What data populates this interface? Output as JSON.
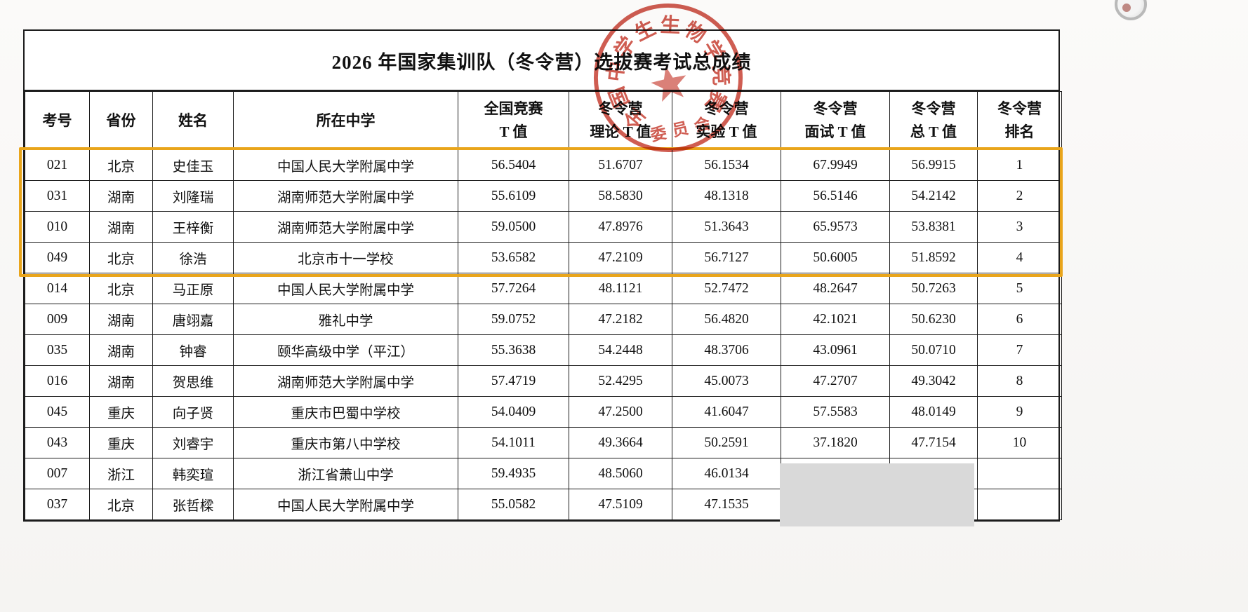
{
  "title": "2026 年国家集训队（冬令营）选拔赛考试总成绩",
  "table": {
    "columns": [
      {
        "key": "exam-number",
        "label": "考号"
      },
      {
        "key": "province",
        "label": "省份"
      },
      {
        "key": "student-name",
        "label": "姓名"
      },
      {
        "key": "school",
        "label": "所在中学"
      },
      {
        "key": "national-contest-t",
        "label": "全国竞赛\nT 值"
      },
      {
        "key": "camp-theory-t",
        "label": "冬令营\n理论 T 值"
      },
      {
        "key": "camp-experiment-t",
        "label": "冬令营\n实验 T 值"
      },
      {
        "key": "camp-interview-t",
        "label": "冬令营\n面试 T 值"
      },
      {
        "key": "camp-total-t",
        "label": "冬令营\n总 T 值"
      },
      {
        "key": "camp-rank",
        "label": "冬令营\n排名"
      }
    ],
    "rows": [
      [
        "021",
        "北京",
        "史佳玉",
        "中国人民大学附属中学",
        "56.5404",
        "51.6707",
        "56.1534",
        "67.9949",
        "56.9915",
        "1"
      ],
      [
        "031",
        "湖南",
        "刘隆瑞",
        "湖南师范大学附属中学",
        "55.6109",
        "58.5830",
        "48.1318",
        "56.5146",
        "54.2142",
        "2"
      ],
      [
        "010",
        "湖南",
        "王梓衡",
        "湖南师范大学附属中学",
        "59.0500",
        "47.8976",
        "51.3643",
        "65.9573",
        "53.8381",
        "3"
      ],
      [
        "049",
        "北京",
        "徐浩",
        "北京市十一学校",
        "53.6582",
        "47.2109",
        "56.7127",
        "50.6005",
        "51.8592",
        "4"
      ],
      [
        "014",
        "北京",
        "马正原",
        "中国人民大学附属中学",
        "57.7264",
        "48.1121",
        "52.7472",
        "48.2647",
        "50.7263",
        "5"
      ],
      [
        "009",
        "湖南",
        "唐翊嘉",
        "雅礼中学",
        "59.0752",
        "47.2182",
        "56.4820",
        "42.1021",
        "50.6230",
        "6"
      ],
      [
        "035",
        "湖南",
        "钟睿",
        "颐华高级中学（平江）",
        "55.3638",
        "54.2448",
        "48.3706",
        "43.0961",
        "50.0710",
        "7"
      ],
      [
        "016",
        "湖南",
        "贺思维",
        "湖南师范大学附属中学",
        "57.4719",
        "52.4295",
        "45.0073",
        "47.2707",
        "49.3042",
        "8"
      ],
      [
        "045",
        "重庆",
        "向子贤",
        "重庆市巴蜀中学校",
        "54.0409",
        "47.2500",
        "41.6047",
        "57.5583",
        "48.0149",
        "9"
      ],
      [
        "043",
        "重庆",
        "刘睿宇",
        "重庆市第八中学校",
        "54.1011",
        "49.3664",
        "50.2591",
        "37.1820",
        "47.7154",
        "10"
      ],
      [
        "007",
        "浙江",
        "韩奕瑄",
        "浙江省萧山中学",
        "59.4935",
        "48.5060",
        "46.0134",
        "",
        "",
        ""
      ],
      [
        "037",
        "北京",
        "张哲樑",
        "中国人民大学附属中学",
        "55.0582",
        "47.5109",
        "47.1535",
        "",
        "",
        ""
      ]
    ],
    "highlighted_ranks": "1-4"
  },
  "stamp": {
    "ring_text": "全国中学生生物学竞赛",
    "bottom_text": "委员会"
  },
  "colors": {
    "stamp_red": "#c5392b",
    "highlight_border": "#e9a51b",
    "redaction_gray": "#d9d9d9"
  }
}
